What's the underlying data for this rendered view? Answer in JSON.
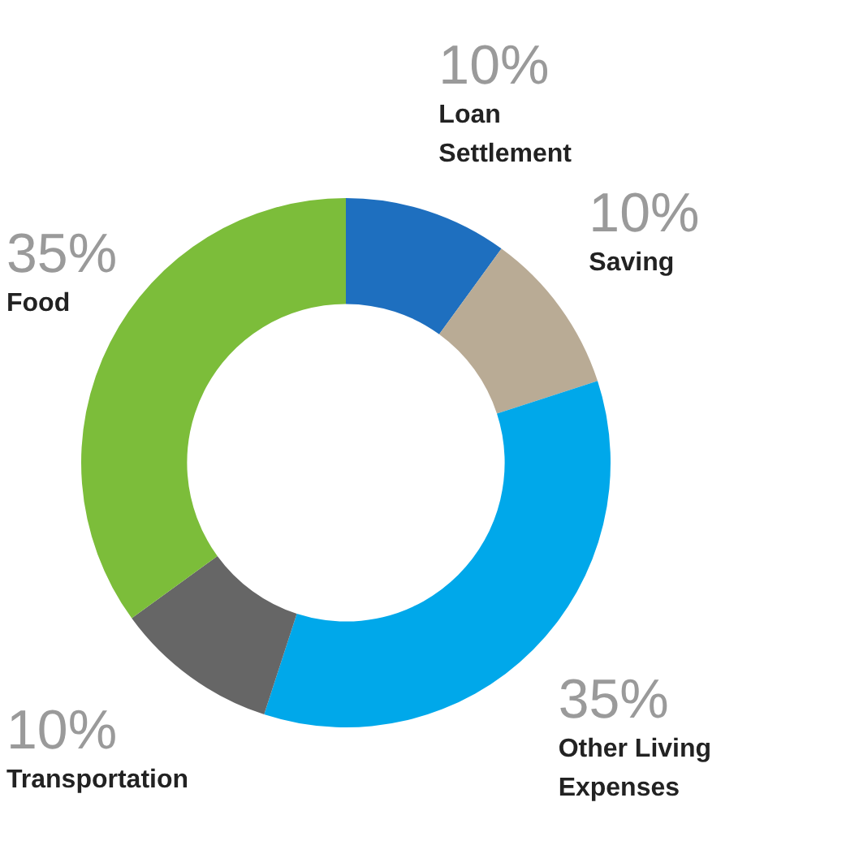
{
  "chart_data": {
    "type": "donut",
    "categories": [
      "Loan Settlement",
      "Saving",
      "Other Living Expenses",
      "Transportation",
      "Food"
    ],
    "values": [
      10,
      10,
      35,
      10,
      35
    ],
    "value_labels": [
      "10%",
      "10%",
      "35%",
      "10%",
      "35%"
    ],
    "colors": [
      "#1e6fbf",
      "#b9ab95",
      "#00a8ea",
      "#666666",
      "#7cbd3a"
    ],
    "legend": false
  }
}
